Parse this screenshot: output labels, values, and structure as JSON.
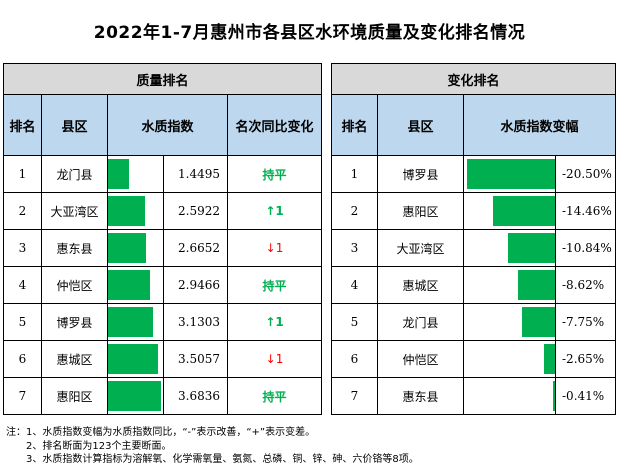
{
  "title": "2022年1-7月惠州市各县区水环境质量及变化排名情况",
  "quality": {
    "group_label": "质量排名",
    "headers": [
      "排名",
      "县区",
      "水质指数",
      "名次同比变化"
    ],
    "rows": [
      {
        "rank": "1",
        "county": "龙门县",
        "index": "1.4495",
        "index_value": 1.4495,
        "change": "持平",
        "change_type": "flat"
      },
      {
        "rank": "2",
        "county": "大亚湾区",
        "index": "2.5922",
        "index_value": 2.5922,
        "change": "1",
        "change_type": "up"
      },
      {
        "rank": "3",
        "county": "惠东县",
        "index": "2.6652",
        "index_value": 2.6652,
        "change": "1",
        "change_type": "down"
      },
      {
        "rank": "4",
        "county": "仲恺区",
        "index": "2.9466",
        "index_value": 2.9466,
        "change": "持平",
        "change_type": "flat"
      },
      {
        "rank": "5",
        "county": "博罗县",
        "index": "3.1303",
        "index_value": 3.1303,
        "change": "1",
        "change_type": "up"
      },
      {
        "rank": "6",
        "county": "惠城区",
        "index": "3.5057",
        "index_value": 3.5057,
        "change": "1",
        "change_type": "down"
      },
      {
        "rank": "7",
        "county": "惠阳区",
        "index": "3.6836",
        "index_value": 3.6836,
        "change": "持平",
        "change_type": "flat"
      }
    ]
  },
  "change": {
    "group_label": "变化排名",
    "headers": [
      "排名",
      "县区",
      "水质指数变幅"
    ],
    "rows": [
      {
        "rank": "1",
        "county": "博罗县",
        "pct": "-20.50%",
        "pct_value": 20.5
      },
      {
        "rank": "2",
        "county": "惠阳区",
        "pct": "-14.46%",
        "pct_value": 14.46
      },
      {
        "rank": "3",
        "county": "大亚湾区",
        "pct": "-10.84%",
        "pct_value": 10.84
      },
      {
        "rank": "4",
        "county": "惠城区",
        "pct": "-8.62%",
        "pct_value": 8.62
      },
      {
        "rank": "5",
        "county": "龙门县",
        "pct": "-7.75%",
        "pct_value": 7.75
      },
      {
        "rank": "6",
        "county": "仲恺区",
        "pct": "-2.65%",
        "pct_value": 2.65
      },
      {
        "rank": "7",
        "county": "惠东县",
        "pct": "-0.41%",
        "pct_value": 0.41
      }
    ]
  },
  "notes": [
    "注：1、水质指数变幅为水质指数同比，“-”表示改善，“+”表示变差。",
    "2、排名断面为123个主要断面。",
    "3、水质指数计算指标为溶解氧、化学需氧量、氨氮、总磷、铜、锌、砷、六价铬等8项。"
  ],
  "colors": {
    "bar": "#00b050",
    "up": "#00b050",
    "down": "#ff0000",
    "header": "#bdd7ee",
    "group": "#d9d9d9"
  }
}
